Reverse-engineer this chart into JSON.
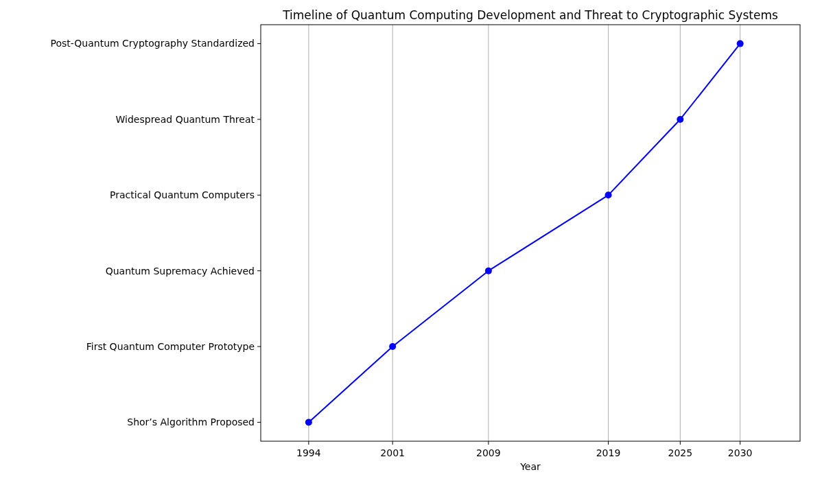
{
  "chart_data": {
    "type": "line",
    "orientation": "horizontal",
    "title": "Timeline of Quantum Computing Development and Threat to Cryptographic Systems",
    "xlabel": "Year",
    "categories": [
      "Post-Quantum Cryptography Standardized",
      "Widespread Quantum Threat",
      "Practical Quantum Computers",
      "Quantum Supremacy Achieved",
      "First Quantum Computer Prototype",
      "Shor’s Algorithm Proposed"
    ],
    "series": [
      {
        "color": "#0000ff",
        "values": [
          2030,
          2025,
          2019,
          2009,
          2001,
          1994
        ]
      }
    ],
    "xlim": [
      1990,
      2035
    ],
    "xticks": [
      1994,
      2001,
      2009,
      2019,
      2025,
      2030
    ],
    "grid": "x",
    "marker": "circle",
    "line_style": "solid"
  }
}
